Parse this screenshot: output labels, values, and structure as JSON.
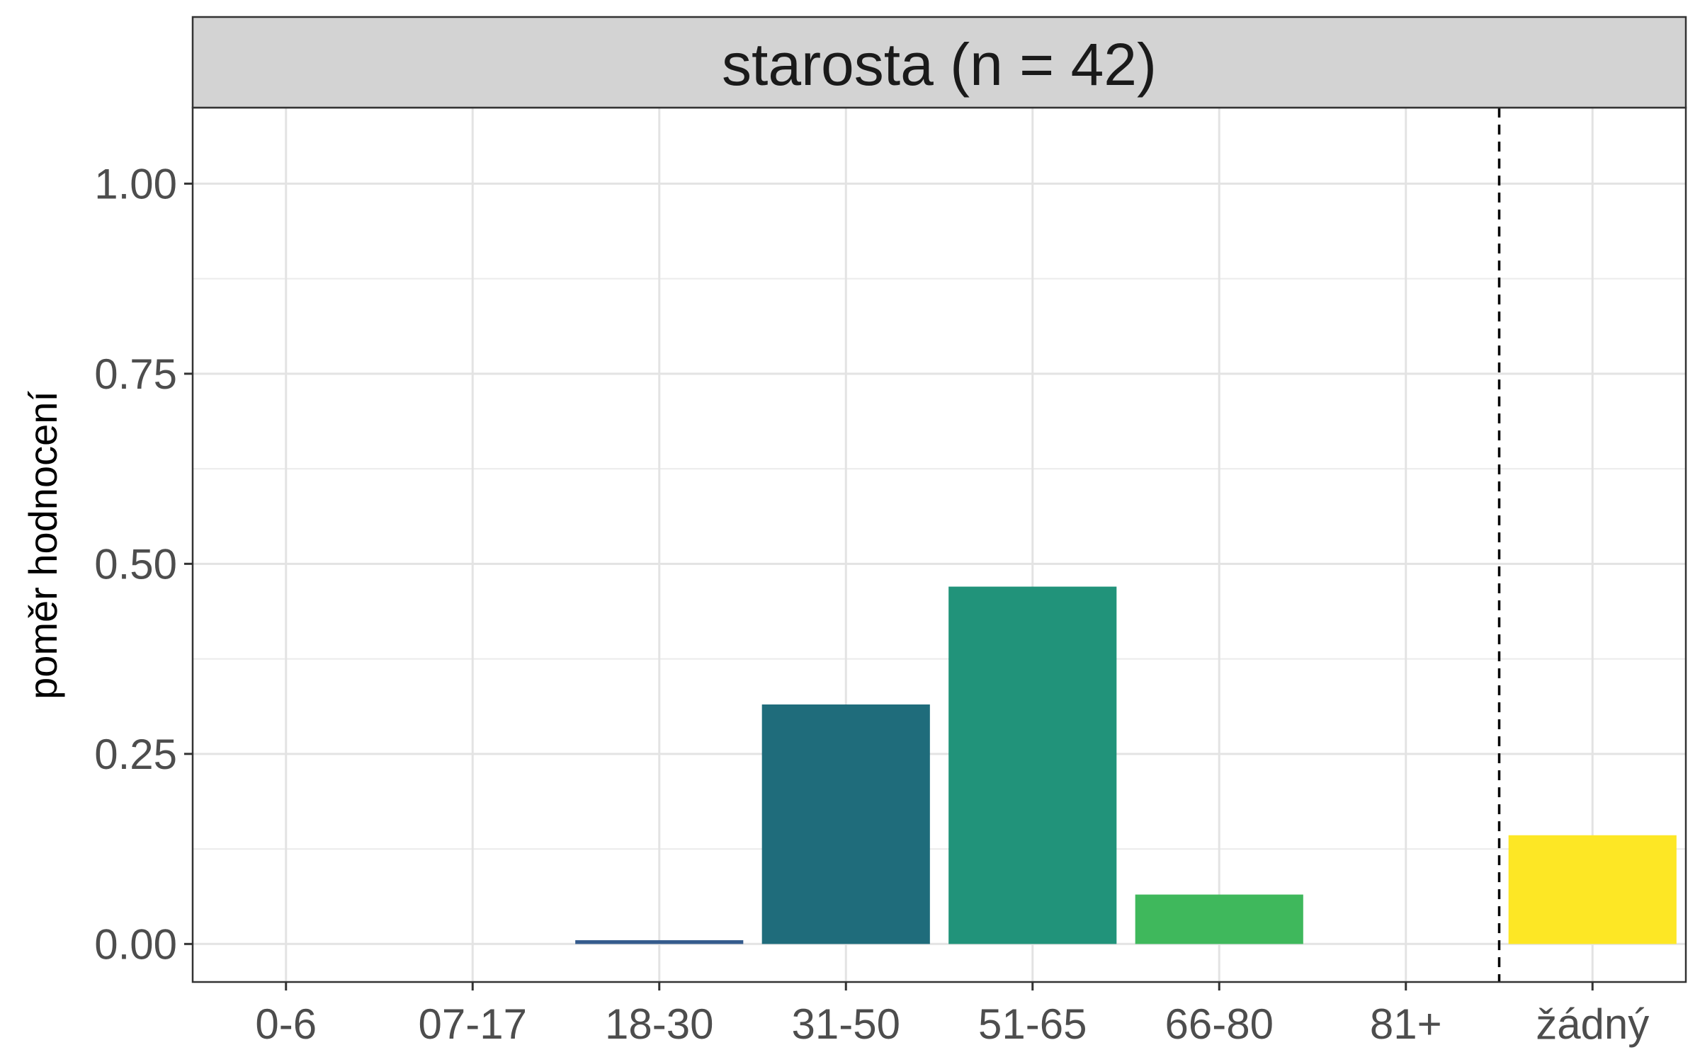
{
  "chart_data": {
    "type": "bar",
    "facet_title": "starosta (n = 42)",
    "ylabel": "poměr hodnocení",
    "xlabel": "",
    "categories": [
      "0-6",
      "07-17",
      "18-30",
      "31-50",
      "51-65",
      "66-80",
      "81+",
      "žádný"
    ],
    "values": [
      0,
      0,
      0.005,
      0.315,
      0.47,
      0.065,
      0,
      0.143
    ],
    "colors": [
      "#440154",
      "#46337E",
      "#365C8D",
      "#1F6C7B",
      "#21937A",
      "#3FB85C",
      "#9AD93C",
      "#FDE725"
    ],
    "ylim": [
      -0.05,
      1.1
    ],
    "yticks": [
      0,
      0.25,
      0.5,
      0.75,
      1.0
    ],
    "ytick_labels": [
      "0.00",
      "0.25",
      "0.50",
      "0.75",
      "1.00"
    ],
    "separator_after_category": "81+",
    "separator_style": "dashed",
    "grid": true,
    "strip_color": "#d3d3d3"
  }
}
